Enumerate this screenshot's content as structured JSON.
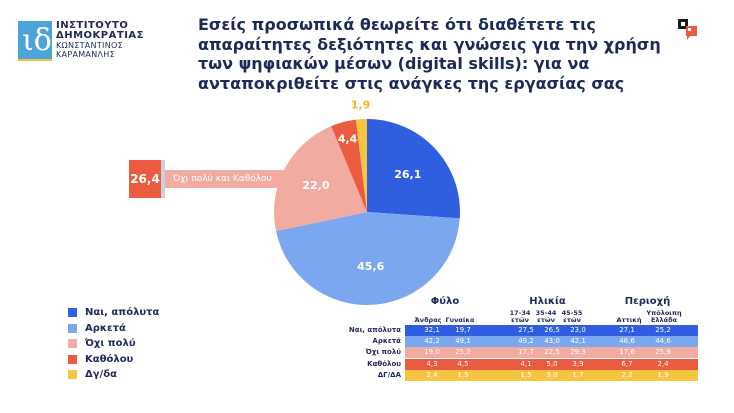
{
  "logo": {
    "line1": "ΙΝΣΤΙΤΟΥΤΟ",
    "line2": "ΔΗΜΟΚΡΑΤΙΑΣ",
    "line3": "ΚΩΝΣΤΑΝΤΙΝΟΣ",
    "line4": "ΚΑΡΑΜΑΝΛΗΣ",
    "glyph": "ιδ"
  },
  "title": "Εσείς προσωπικά θεωρείτε ότι διαθέτετε τις απαραίτητες δεξιότητες και γνώσεις για την χρήση των ψηφιακών μέσων (digital skills): για να ανταποκριθείτε στις ανάγκες της εργασίας σας",
  "callout": {
    "value": "26,4",
    "label": "Όχι πολύ και Καθόλου"
  },
  "colors": {
    "nai": "#2f5fe0",
    "arketa": "#7ba7ee",
    "oxi_poly": "#f2aba1",
    "katholou": "#ea5b3f",
    "dgda": "#f8c540",
    "text": "#1d2a57"
  },
  "legend": [
    {
      "label": "Ναι, απόλυτα",
      "color": "#2f5fe0"
    },
    {
      "label": "Αρκετά",
      "color": "#7ba7ee"
    },
    {
      "label": "Όχι πολύ",
      "color": "#f2aba1"
    },
    {
      "label": "Καθόλου",
      "color": "#ea5b3f"
    },
    {
      "label": "Δγ/δα",
      "color": "#f8c540"
    }
  ],
  "table": {
    "groups": [
      "Φύλο",
      "Ηλικία",
      "Περιοχή"
    ],
    "columns": [
      "Άνδρας",
      "Γυναίκα",
      "17-34 ετών",
      "35-44 ετών",
      "45-55 ετών",
      "Αττική",
      "Υπόλοιπη Ελλάδα"
    ],
    "column_lines": {
      "c0": [
        "Άνδρας"
      ],
      "c1": [
        "Γυναίκα"
      ],
      "c2": [
        "17-34",
        "ετών"
      ],
      "c3": [
        "35-44",
        "ετών"
      ],
      "c4": [
        "45-55",
        "ετών"
      ],
      "c5": [
        "Αττική"
      ],
      "c6": [
        "Υπόλοιπη",
        "Ελλάδα"
      ]
    },
    "rows": [
      {
        "label": "Ναι, απόλυτα",
        "color": "#2f5fe0",
        "values": [
          "32,1",
          "19,7",
          "27,5",
          "26,5",
          "23,0",
          "27,1",
          "25,2"
        ]
      },
      {
        "label": "Αρκετά",
        "color": "#7ba7ee",
        "values": [
          "42,2",
          "49,1",
          "49,2",
          "43,0",
          "42,1",
          "46,6",
          "44,6"
        ]
      },
      {
        "label": "Όχι πολύ",
        "color": "#f2aba1",
        "values": [
          "19,0",
          "25,2",
          "17,7",
          "22,5",
          "29,3",
          "17,6",
          "25,9"
        ]
      },
      {
        "label": "Καθόλου",
        "color": "#ea5b3f",
        "values": [
          "4,3",
          "4,5",
          "4,1",
          "5,0",
          "3,9",
          "6,7",
          "2,4"
        ]
      },
      {
        "label": "ΔΓ/ΔΑ",
        "color": "#f8c540",
        "values": [
          "2,4",
          "1,5",
          "1,5",
          "3,0",
          "1,7",
          "2,2",
          "1,9"
        ]
      }
    ]
  },
  "chart_data": [
    {
      "type": "pie",
      "title": "Εσείς προσωπικά θεωρείτε ότι διαθέτετε τις απαραίτητες δεξιότητες και γνώσεις για την χρήση των ψηφιακών μέσων (digital skills): για να ανταποκριθείτε στις ανάγκες της εργασίας σας",
      "categories": [
        "Ναι, απόλυτα",
        "Αρκετά",
        "Όχι πολύ",
        "Καθόλου",
        "Δγ/δα"
      ],
      "values": [
        26.1,
        45.6,
        22.0,
        4.4,
        1.9
      ],
      "labels": [
        "26,1",
        "45,6",
        "22,0",
        "4,4",
        "1,9"
      ],
      "colors": [
        "#2f5fe0",
        "#7ba7ee",
        "#f2aba1",
        "#ea5b3f",
        "#f8c540"
      ],
      "annotations": [
        {
          "text": "Όχι πολύ και Καθόλου",
          "value": 26.4
        }
      ],
      "legend_position": "bottom-left"
    },
    {
      "type": "table",
      "groups": [
        {
          "name": "Φύλο",
          "columns": [
            "Άνδρας",
            "Γυναίκα"
          ]
        },
        {
          "name": "Ηλικία",
          "columns": [
            "17-34 ετών",
            "35-44 ετών",
            "45-55 ετών"
          ]
        },
        {
          "name": "Περιοχή",
          "columns": [
            "Αττική",
            "Υπόλοιπη Ελλάδα"
          ]
        }
      ],
      "columns": [
        "Άνδρας",
        "Γυναίκα",
        "17-34 ετών",
        "35-44 ετών",
        "45-55 ετών",
        "Αττική",
        "Υπόλοιπη Ελλάδα"
      ],
      "series": [
        {
          "name": "Ναι, απόλυτα",
          "values": [
            32.1,
            19.7,
            27.5,
            26.5,
            23.0,
            27.1,
            25.2
          ]
        },
        {
          "name": "Αρκετά",
          "values": [
            42.2,
            49.1,
            49.2,
            43.0,
            42.1,
            46.6,
            44.6
          ]
        },
        {
          "name": "Όχι πολύ",
          "values": [
            19.0,
            25.2,
            17.7,
            22.5,
            29.3,
            17.6,
            25.9
          ]
        },
        {
          "name": "Καθόλου",
          "values": [
            4.3,
            4.5,
            4.1,
            5.0,
            3.9,
            6.7,
            2.4
          ]
        },
        {
          "name": "ΔΓ/ΔΑ",
          "values": [
            2.4,
            1.5,
            1.5,
            3.0,
            1.7,
            2.2,
            1.9
          ]
        }
      ]
    }
  ]
}
